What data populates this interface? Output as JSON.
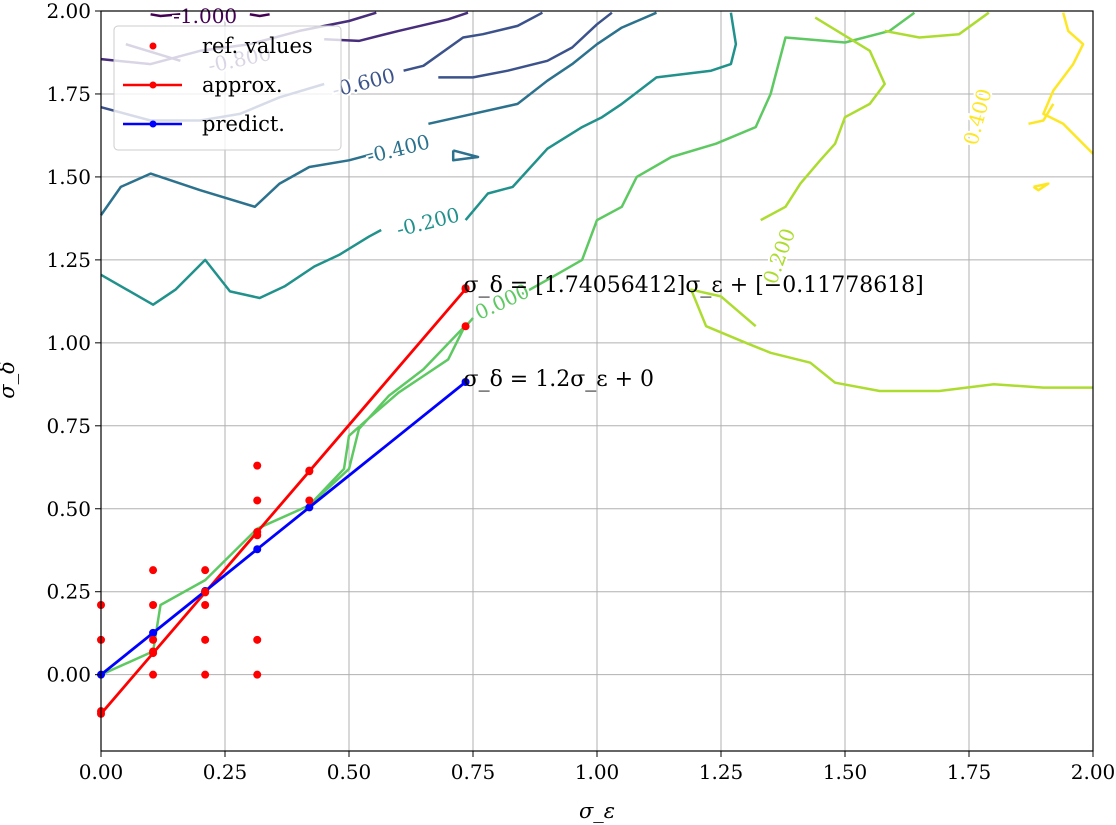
{
  "chart_data": {
    "type": "line",
    "xlabel": "σ_ε",
    "ylabel": "σ_δ",
    "xlim": [
      0,
      2
    ],
    "ylim": [
      -0.23,
      2
    ],
    "grid": true,
    "legend": {
      "placement": "top-left",
      "entries": [
        {
          "label": "ref. values",
          "color": "#ff0000",
          "kind": "points"
        },
        {
          "label": "approx.",
          "color": "#ff0000",
          "kind": "line-marker"
        },
        {
          "label": "predict.",
          "color": "#0000ff",
          "kind": "line-marker"
        }
      ]
    },
    "x_ticks": [
      0,
      0.25,
      0.5,
      0.75,
      1.0,
      1.25,
      1.5,
      1.75,
      2.0
    ],
    "x_tick_labels": [
      "0.00",
      "0.25",
      "0.50",
      "0.75",
      "1.00",
      "1.25",
      "1.50",
      "1.75",
      "2.00"
    ],
    "y_ticks": [
      0,
      0.25,
      0.5,
      0.75,
      1.0,
      1.25,
      1.5,
      1.75,
      2.0
    ],
    "y_tick_labels": [
      "0.00",
      "0.25",
      "0.50",
      "0.75",
      "1.00",
      "1.25",
      "1.50",
      "1.75",
      "2.00"
    ],
    "ref_values": [
      [
        0,
        -0.11
      ],
      [
        0,
        0.105
      ],
      [
        0,
        0.21
      ],
      [
        0.105,
        0
      ],
      [
        0.105,
        0.07
      ],
      [
        0.105,
        0.105
      ],
      [
        0.105,
        0.21
      ],
      [
        0.105,
        0.315
      ],
      [
        0.21,
        0
      ],
      [
        0.21,
        0.105
      ],
      [
        0.21,
        0.21
      ],
      [
        0.21,
        0.25
      ],
      [
        0.21,
        0.315
      ],
      [
        0.315,
        0
      ],
      [
        0.315,
        0.105
      ],
      [
        0.315,
        0.42
      ],
      [
        0.315,
        0.525
      ],
      [
        0.315,
        0.63
      ],
      [
        0.42,
        0.525
      ],
      [
        0.42,
        0.615
      ],
      [
        0.735,
        1.05
      ],
      [
        0.735,
        1.165
      ]
    ],
    "approx": {
      "name": "approx.",
      "color": "#ff0000",
      "points": [
        [
          0,
          -0.118
        ],
        [
          0.105,
          0.065
        ],
        [
          0.21,
          0.248
        ],
        [
          0.315,
          0.43
        ],
        [
          0.42,
          0.613
        ],
        [
          0.735,
          1.162
        ]
      ]
    },
    "predict": {
      "name": "predict.",
      "color": "#0000ff",
      "points": [
        [
          0,
          0
        ],
        [
          0.105,
          0.126
        ],
        [
          0.21,
          0.252
        ],
        [
          0.315,
          0.378
        ],
        [
          0.42,
          0.504
        ],
        [
          0.735,
          0.882
        ]
      ]
    },
    "annotations": [
      {
        "text": "σ_δ = [1.74056412]σ_ε + [−0.11778618]",
        "x": 0.735,
        "y": 1.165
      },
      {
        "text": "σ_δ = 1.2σ_ε + 0",
        "x": 0.735,
        "y": 0.882
      }
    ],
    "contours": [
      {
        "level": "-1.000",
        "color": "#440154",
        "segments": [
          [
            [
              0.1,
              1.99
            ],
            [
              0.12,
              1.985
            ],
            [
              0.16,
              1.99
            ]
          ],
          [
            [
              0.3,
              1.99
            ],
            [
              0.32,
              1.985
            ],
            [
              0.34,
              1.99
            ]
          ]
        ],
        "labels": [
          {
            "text": "-1.000",
            "x": 0.21,
            "y": 1.98,
            "angle": 0
          }
        ]
      },
      {
        "level": "-0.800",
        "color": "#472d7b",
        "segments": [
          [
            [
              0,
              1.855
            ],
            [
              0.1,
              1.84
            ],
            [
              0.2,
              1.88
            ],
            [
              0.3,
              1.9
            ],
            [
              0.4,
              1.94
            ],
            [
              0.5,
              1.97
            ],
            [
              0.555,
              1.995
            ]
          ],
          [
            [
              0.05,
              1.9
            ],
            [
              0.16,
              1.85
            ]
          ],
          [
            [
              0.45,
              1.915
            ],
            [
              0.52,
              1.91
            ],
            [
              0.6,
              1.94
            ],
            [
              0.7,
              1.975
            ],
            [
              0.74,
              1.995
            ]
          ]
        ],
        "labels": [
          {
            "text": "-0.800",
            "x": 0.28,
            "y": 1.85,
            "angle": -12
          }
        ]
      },
      {
        "level": "-0.600",
        "color": "#3b528b",
        "segments": [
          [
            [
              0,
              1.71
            ],
            [
              0.1,
              1.67
            ],
            [
              0.2,
              1.67
            ],
            [
              0.28,
              1.69
            ],
            [
              0.36,
              1.74
            ],
            [
              0.45,
              1.78
            ]
          ],
          [
            [
              0.68,
              1.8
            ],
            [
              0.75,
              1.8
            ],
            [
              0.82,
              1.82
            ],
            [
              0.9,
              1.85
            ],
            [
              0.95,
              1.89
            ],
            [
              1.0,
              1.96
            ],
            [
              1.03,
              1.995
            ]
          ],
          [
            [
              0.61,
              1.82
            ],
            [
              0.65,
              1.835
            ],
            [
              0.73,
              1.92
            ],
            [
              0.77,
              1.93
            ],
            [
              0.84,
              1.955
            ],
            [
              0.89,
              1.995
            ]
          ]
        ],
        "labels": [
          {
            "text": "-0.600",
            "x": 0.53,
            "y": 1.78,
            "angle": -14
          }
        ]
      },
      {
        "level": "-0.400",
        "color": "#2c728e",
        "segments": [
          [
            [
              0,
              1.385
            ],
            [
              0.04,
              1.47
            ],
            [
              0.1,
              1.51
            ],
            [
              0.2,
              1.46
            ],
            [
              0.31,
              1.41
            ],
            [
              0.36,
              1.48
            ],
            [
              0.42,
              1.53
            ],
            [
              0.5,
              1.55
            ],
            [
              0.55,
              1.57
            ]
          ],
          [
            [
              0.66,
              1.66
            ],
            [
              0.72,
              1.68
            ],
            [
              0.84,
              1.72
            ],
            [
              0.9,
              1.79
            ],
            [
              0.95,
              1.84
            ],
            [
              1.0,
              1.9
            ],
            [
              1.05,
              1.95
            ],
            [
              1.12,
              1.995
            ]
          ],
          [
            [
              0.71,
              1.58
            ],
            [
              0.76,
              1.56
            ],
            [
              0.71,
              1.55
            ],
            [
              0.71,
              1.58
            ]
          ]
        ],
        "labels": [
          {
            "text": "-0.400",
            "x": 0.6,
            "y": 1.58,
            "angle": -14
          }
        ]
      },
      {
        "level": "-0.200",
        "color": "#21918c",
        "segments": [
          [
            [
              0,
              1.205
            ],
            [
              0.105,
              1.115
            ],
            [
              0.15,
              1.16
            ],
            [
              0.21,
              1.25
            ],
            [
              0.26,
              1.155
            ],
            [
              0.32,
              1.135
            ],
            [
              0.37,
              1.17
            ],
            [
              0.43,
              1.23
            ],
            [
              0.48,
              1.265
            ],
            [
              0.54,
              1.32
            ],
            [
              0.565,
              1.34
            ]
          ],
          [
            [
              0.735,
              1.37
            ],
            [
              0.78,
              1.45
            ],
            [
              0.83,
              1.47
            ],
            [
              0.9,
              1.585
            ],
            [
              0.97,
              1.65
            ],
            [
              1.01,
              1.68
            ],
            [
              1.05,
              1.72
            ],
            [
              1.12,
              1.8
            ],
            [
              1.23,
              1.82
            ],
            [
              1.27,
              1.84
            ],
            [
              1.28,
              1.9
            ],
            [
              1.27,
              1.995
            ]
          ]
        ],
        "labels": [
          {
            "text": "-0.200",
            "x": 0.66,
            "y": 1.36,
            "angle": -14
          }
        ]
      },
      {
        "level": "0.000",
        "color": "#5ec962",
        "segments": [
          [
            [
              0,
              0.0
            ],
            [
              0.105,
              0.07
            ],
            [
              0.12,
              0.21
            ],
            [
              0.21,
              0.285
            ],
            [
              0.315,
              0.44
            ],
            [
              0.42,
              0.51
            ],
            [
              0.49,
              0.62
            ],
            [
              0.5,
              0.72
            ],
            [
              0.53,
              0.76
            ],
            [
              0.6,
              0.85
            ],
            [
              0.65,
              0.9
            ],
            [
              0.7,
              0.95
            ],
            [
              0.73,
              1.04
            ],
            [
              0.75,
              1.075
            ]
          ],
          [
            [
              0.84,
              1.14
            ],
            [
              0.9,
              1.19
            ],
            [
              0.97,
              1.25
            ],
            [
              1.0,
              1.37
            ],
            [
              1.05,
              1.41
            ],
            [
              1.08,
              1.5
            ],
            [
              1.15,
              1.56
            ],
            [
              1.24,
              1.6
            ],
            [
              1.32,
              1.65
            ],
            [
              1.35,
              1.75
            ],
            [
              1.38,
              1.92
            ],
            [
              1.5,
              1.905
            ],
            [
              1.59,
              1.94
            ],
            [
              1.64,
              1.995
            ]
          ],
          [
            [
              0.42,
              0.51
            ],
            [
              0.5,
              0.62
            ],
            [
              0.52,
              0.74
            ],
            [
              0.58,
              0.84
            ],
            [
              0.65,
              0.92
            ],
            [
              0.74,
              1.06
            ]
          ]
        ],
        "labels": [
          {
            "text": "0.000",
            "x": 0.81,
            "y": 1.12,
            "angle": -25
          }
        ]
      },
      {
        "level": "0.200",
        "color": "#addc30",
        "segments": [
          [
            [
              1.44,
              1.98
            ],
            [
              1.55,
              1.88
            ],
            [
              1.58,
              1.78
            ],
            [
              1.55,
              1.72
            ],
            [
              1.5,
              1.68
            ],
            [
              1.48,
              1.6
            ],
            [
              1.45,
              1.55
            ],
            [
              1.41,
              1.48
            ],
            [
              1.38,
              1.41
            ],
            [
              1.33,
              1.37
            ]
          ],
          [
            [
              1.32,
              1.05
            ],
            [
              1.25,
              1.14
            ],
            [
              1.19,
              1.16
            ],
            [
              1.22,
              1.05
            ],
            [
              1.3,
              1.0
            ],
            [
              1.35,
              0.97
            ],
            [
              1.43,
              0.94
            ],
            [
              1.48,
              0.88
            ],
            [
              1.57,
              0.855
            ],
            [
              1.69,
              0.855
            ],
            [
              1.8,
              0.875
            ],
            [
              1.9,
              0.865
            ],
            [
              2.0,
              0.865
            ]
          ],
          [
            [
              1.58,
              1.94
            ],
            [
              1.65,
              1.92
            ],
            [
              1.73,
              1.93
            ],
            [
              1.79,
              1.995
            ]
          ]
        ],
        "labels": [
          {
            "text": "0.200",
            "x": 1.37,
            "y": 1.26,
            "angle": -70
          }
        ]
      },
      {
        "level": "0.400",
        "color": "#fde725",
        "segments": [
          [
            [
              1.94,
              1.995
            ],
            [
              1.95,
              1.94
            ],
            [
              1.98,
              1.9
            ],
            [
              1.96,
              1.84
            ],
            [
              1.92,
              1.76
            ],
            [
              1.9,
              1.69
            ],
            [
              1.94,
              1.66
            ],
            [
              2.0,
              1.57
            ]
          ],
          [
            [
              1.87,
              1.66
            ],
            [
              1.9,
              1.67
            ],
            [
              1.92,
              1.72
            ]
          ],
          [
            [
              1.88,
              1.47
            ],
            [
              1.91,
              1.48
            ],
            [
              1.89,
              1.46
            ],
            [
              1.88,
              1.47
            ]
          ]
        ],
        "labels": [
          {
            "text": "0.400",
            "x": 1.77,
            "y": 1.68,
            "angle": -75
          }
        ]
      }
    ]
  }
}
